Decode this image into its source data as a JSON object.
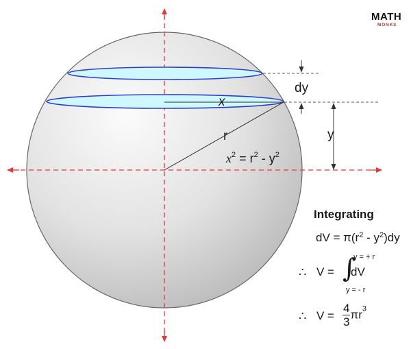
{
  "logo": {
    "main": "MATH",
    "sub": "MONKS"
  },
  "labels": {
    "dy": "dy",
    "x": "x",
    "y": "y",
    "r": "r",
    "circle_eq": {
      "x": "x",
      "exp1": "2",
      "mid": " = r",
      "exp2": "2",
      "tail": " - y",
      "exp3": "2"
    }
  },
  "integration": {
    "heading": "Integrating",
    "dv_line": {
      "pre": "dV = π(r",
      "e1": "2",
      "mid": " - y",
      "e2": "2",
      "post": ")dy"
    },
    "therefore": "∴",
    "v_eq": "V  =",
    "integral_sign": "∫",
    "upper_limit": "y = + r",
    "lower_limit": "y = - r",
    "integrand": "dV",
    "result": {
      "num": "4",
      "den": "3",
      "pi_r": "πr",
      "exp": "3"
    }
  },
  "colors": {
    "axis": "#e03b3b",
    "disc_fill": "#cff7ff",
    "disc_stroke": "#2f3fc4",
    "sphere_edge": "#555555",
    "dimension_line": "#333333"
  }
}
